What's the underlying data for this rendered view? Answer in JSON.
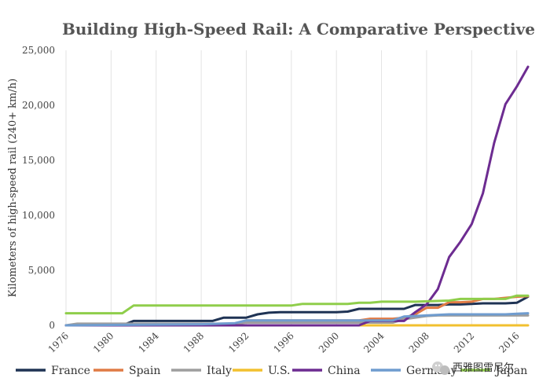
{
  "chart_data": {
    "type": "line",
    "title": "Building High-Speed Rail: A Comparative Perspective",
    "xlabel": "",
    "ylabel": "Kilometers of high-speed rail (240+ km/h)",
    "xlim": [
      1976,
      2017
    ],
    "ylim": [
      0,
      25000
    ],
    "x_ticks": [
      1976,
      1980,
      1984,
      1988,
      1992,
      1996,
      2000,
      2004,
      2008,
      2012,
      2016
    ],
    "y_ticks": [
      0,
      5000,
      10000,
      15000,
      20000,
      25000
    ],
    "y_tick_labels": [
      "0",
      "5,000",
      "10,000",
      "15,000",
      "20,000",
      "25,000"
    ],
    "grid": "vertical",
    "legend_position": "bottom",
    "series": [
      {
        "name": "France",
        "color": "#1f3354",
        "x": [
          1976,
          1981,
          1982,
          1989,
          1990,
          1992,
          1993,
          1994,
          1995,
          2000,
          2001,
          2002,
          2006,
          2007,
          2008,
          2009,
          2010,
          2011,
          2012,
          2013,
          2014,
          2015,
          2016,
          2017
        ],
        "y": [
          0,
          0,
          400,
          400,
          700,
          700,
          1000,
          1150,
          1200,
          1200,
          1250,
          1500,
          1500,
          1850,
          1850,
          1850,
          1900,
          1900,
          1950,
          2000,
          2000,
          2000,
          2050,
          2600
        ]
      },
      {
        "name": "Spain",
        "color": "#e07b45",
        "x": [
          1976,
          1991,
          1992,
          2002,
          2003,
          2004,
          2005,
          2006,
          2007,
          2008,
          2009,
          2010,
          2011,
          2012,
          2013,
          2014,
          2015,
          2016,
          2017
        ],
        "y": [
          0,
          0,
          450,
          450,
          600,
          600,
          600,
          700,
          1000,
          1600,
          1600,
          2100,
          2100,
          2150,
          2400,
          2400,
          2500,
          2600,
          2650
        ]
      },
      {
        "name": "Italy",
        "color": "#9e9e9e",
        "x": [
          1976,
          1977,
          1991,
          1992,
          2005,
          2006,
          2007,
          2008,
          2009,
          2017
        ],
        "y": [
          0,
          150,
          150,
          250,
          250,
          550,
          700,
          850,
          900,
          900
        ]
      },
      {
        "name": "U.S.",
        "color": "#f2c02f",
        "x": [
          1976,
          2017
        ],
        "y": [
          0,
          0
        ]
      },
      {
        "name": "China",
        "color": "#6d2c91",
        "x": [
          1976,
          2002,
          2003,
          2004,
          2005,
          2006,
          2007,
          2008,
          2009,
          2010,
          2011,
          2012,
          2013,
          2014,
          2015,
          2016,
          2017
        ],
        "y": [
          0,
          0,
          400,
          400,
          400,
          400,
          1200,
          1900,
          3300,
          6200,
          7600,
          9200,
          12000,
          16600,
          20100,
          21700,
          23500
        ]
      },
      {
        "name": "Germany",
        "color": "#6f9ccf",
        "x": [
          1976,
          1988,
          1991,
          1992,
          2005,
          2006,
          2007,
          2008,
          2010,
          2015,
          2016,
          2017
        ],
        "y": [
          0,
          100,
          200,
          450,
          450,
          800,
          850,
          900,
          1000,
          1000,
          1050,
          1100
        ]
      },
      {
        "name": "Japan",
        "color": "#8fce4b",
        "x": [
          1976,
          1981,
          1982,
          1996,
          1997,
          2001,
          2002,
          2003,
          2004,
          2007,
          2010,
          2011,
          2015,
          2016,
          2017
        ],
        "y": [
          1100,
          1100,
          1800,
          1800,
          1950,
          1950,
          2050,
          2050,
          2150,
          2150,
          2250,
          2400,
          2400,
          2700,
          2700
        ]
      }
    ]
  },
  "watermark": {
    "text": "西雅图雷尼尔",
    "icon": "wechat-icon"
  }
}
